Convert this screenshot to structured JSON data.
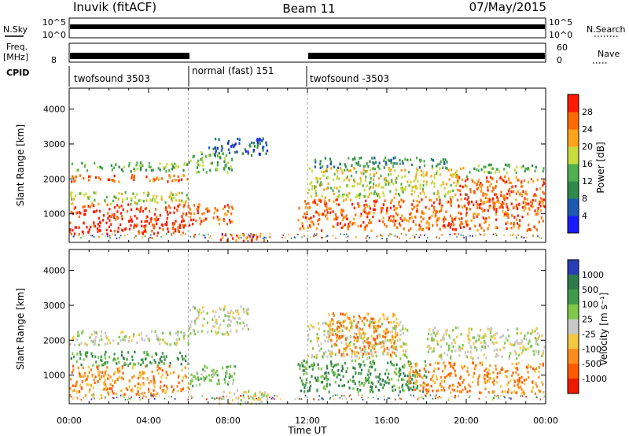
{
  "header": {
    "station": "Inuvik (fitACF)",
    "beam": "Beam 11",
    "date": "07/May/2015"
  },
  "top_panels": {
    "nsky_label": "N.Sky",
    "nsearch_label": "N.Search",
    "noise_ticks": [
      "10^5",
      "10^0"
    ],
    "freq_label": "Freq.",
    "freq_unit": "[MHz]",
    "freq_ticks": [
      "8"
    ],
    "nave_label": "Nave",
    "nave_ticks": [
      "60",
      "0"
    ],
    "cpid_label": "CPID",
    "cpid_segments": [
      {
        "label": "twofsound 3503",
        "start": 0,
        "end": 6
      },
      {
        "label": "normal (fast) 151",
        "start": 6,
        "end": 12
      },
      {
        "label": "twofsound -3503",
        "start": 12,
        "end": 24
      }
    ]
  },
  "chart_data": [
    {
      "type": "heatmap",
      "title": "",
      "xlabel": "Time UT",
      "ylabel": "Slant Range [km]",
      "xlim": [
        0,
        24
      ],
      "ylim": [
        180,
        4600
      ],
      "x_ticks": [
        "00:00",
        "04:00",
        "08:00",
        "12:00",
        "16:00",
        "20:00",
        "00:00"
      ],
      "y_ticks": [
        "1000",
        "2000",
        "3000",
        "4000"
      ],
      "colorbar": {
        "label": "Power [dB]",
        "ticks": [
          "4",
          "8",
          "12",
          "16",
          "20",
          "24",
          "28"
        ],
        "colors": [
          "#1a1aff",
          "#1e5ab4",
          "#2f8a4b",
          "#4fb04f",
          "#c8dc3c",
          "#ffa31a",
          "#ff6a00",
          "#ff1a00"
        ]
      },
      "regions": [
        {
          "t0": 0.0,
          "t1": 6.0,
          "r0": 450,
          "r1": 1300,
          "level": 7
        },
        {
          "t0": 0.0,
          "t1": 6.0,
          "r0": 1300,
          "r1": 1650,
          "level": 4
        },
        {
          "t0": 0.0,
          "t1": 6.0,
          "r0": 1950,
          "r1": 2150,
          "level": 6
        },
        {
          "t0": 0.0,
          "t1": 6.0,
          "r0": 2250,
          "r1": 2500,
          "level": 3
        },
        {
          "t0": 6.0,
          "t1": 8.2,
          "r0": 700,
          "r1": 1300,
          "level": 6
        },
        {
          "t0": 6.0,
          "t1": 8.2,
          "r0": 2200,
          "r1": 2800,
          "level": 3
        },
        {
          "t0": 7.0,
          "t1": 10.0,
          "r0": 2700,
          "r1": 3200,
          "level": 1
        },
        {
          "t0": 7.5,
          "t1": 9.8,
          "r0": 250,
          "r1": 500,
          "level": 6
        },
        {
          "t0": 11.5,
          "t1": 23.9,
          "r0": 550,
          "r1": 1450,
          "level": 6
        },
        {
          "t0": 12.0,
          "t1": 20.0,
          "r0": 1500,
          "r1": 2350,
          "level": 4
        },
        {
          "t0": 12.0,
          "t1": 19.0,
          "r0": 2350,
          "r1": 2650,
          "level": 2
        },
        {
          "t0": 19.5,
          "t1": 23.9,
          "r0": 1200,
          "r1": 2100,
          "level": 6
        },
        {
          "t0": 20.0,
          "t1": 23.9,
          "r0": 2200,
          "r1": 2450,
          "level": 3
        }
      ]
    },
    {
      "type": "heatmap",
      "title": "",
      "xlabel": "Time UT",
      "ylabel": "Slant Range [km]",
      "xlim": [
        0,
        24
      ],
      "ylim": [
        180,
        4600
      ],
      "x_ticks": [
        "00:00",
        "04:00",
        "08:00",
        "12:00",
        "16:00",
        "20:00",
        "00:00"
      ],
      "y_ticks": [
        "1000",
        "2000",
        "3000",
        "4000"
      ],
      "colorbar": {
        "label": "Velocity [m s⁻¹]",
        "ticks": [
          "1000",
          "500",
          "100",
          "25",
          "-25",
          "-100",
          "-500",
          "-1000"
        ],
        "colors": [
          "#2a3eb4",
          "#2f7a4b",
          "#3f9a4b",
          "#7fc84a",
          "#c8c8c8",
          "#f5c842",
          "#ff8c1a",
          "#ff5a00",
          "#ee1a00"
        ]
      },
      "regions": [
        {
          "t0": 0.0,
          "t1": 6.0,
          "r0": 450,
          "r1": 1300,
          "level": 6
        },
        {
          "t0": 0.0,
          "t1": 6.0,
          "r0": 1300,
          "r1": 1700,
          "level": 2
        },
        {
          "t0": 0.0,
          "t1": 6.0,
          "r0": 1900,
          "r1": 2300,
          "level": 4
        },
        {
          "t0": 6.0,
          "t1": 8.5,
          "r0": 700,
          "r1": 1300,
          "level": 3
        },
        {
          "t0": 6.0,
          "t1": 9.0,
          "r0": 2200,
          "r1": 3000,
          "level": 4
        },
        {
          "t0": 7.5,
          "t1": 10.0,
          "r0": 200,
          "r1": 600,
          "level": 4
        },
        {
          "t0": 11.5,
          "t1": 18.0,
          "r0": 550,
          "r1": 1450,
          "level": 2
        },
        {
          "t0": 12.0,
          "t1": 17.0,
          "r0": 1500,
          "r1": 2600,
          "level": 4
        },
        {
          "t0": 13.0,
          "t1": 16.5,
          "r0": 1600,
          "r1": 2800,
          "level": 6
        },
        {
          "t0": 17.0,
          "t1": 23.9,
          "r0": 500,
          "r1": 1400,
          "level": 6
        },
        {
          "t0": 18.0,
          "t1": 23.9,
          "r0": 1500,
          "r1": 2400,
          "level": 4
        }
      ]
    }
  ]
}
